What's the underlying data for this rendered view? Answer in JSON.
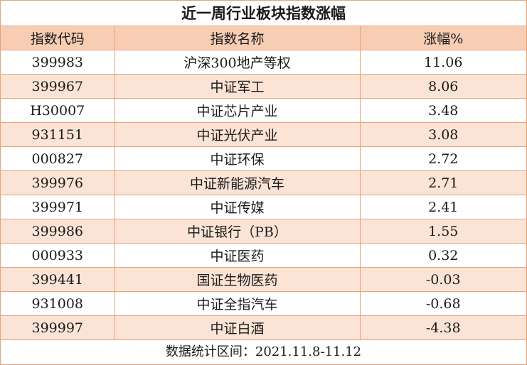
{
  "title": "近一周行业板块指数涨幅",
  "columns": [
    "指数代码",
    "指数名称",
    "涨幅%"
  ],
  "rows": [
    {
      "code": "399983",
      "name": "沪深300地产等权",
      "change": "11.06"
    },
    {
      "code": "399967",
      "name": "中证军工",
      "change": "8.06"
    },
    {
      "code": "H30007",
      "name": "中证芯片产业",
      "change": "3.48"
    },
    {
      "code": "931151",
      "name": "中证光伏产业",
      "change": "3.08"
    },
    {
      "code": "000827",
      "name": "中证环保",
      "change": "2.72"
    },
    {
      "code": "399976",
      "name": "中证新能源汽车",
      "change": "2.71"
    },
    {
      "code": "399971",
      "name": "中证传媒",
      "change": "2.41"
    },
    {
      "code": "399986",
      "name": "中证银行（PB）",
      "change": "1.55"
    },
    {
      "code": "000933",
      "name": "中证医药",
      "change": "0.32"
    },
    {
      "code": "399441",
      "name": "国证生物医药",
      "change": "-0.03"
    },
    {
      "code": "931008",
      "name": "中证全指汽车",
      "change": "-0.68"
    },
    {
      "code": "399997",
      "name": "中证白酒",
      "change": "-4.38"
    }
  ],
  "footer": "数据统计区间：2021.11.8-11.12",
  "colors": {
    "border": "#e8a37d",
    "header_bg": "#f7cdb4",
    "stripe_bg": "#fbe4d6"
  }
}
